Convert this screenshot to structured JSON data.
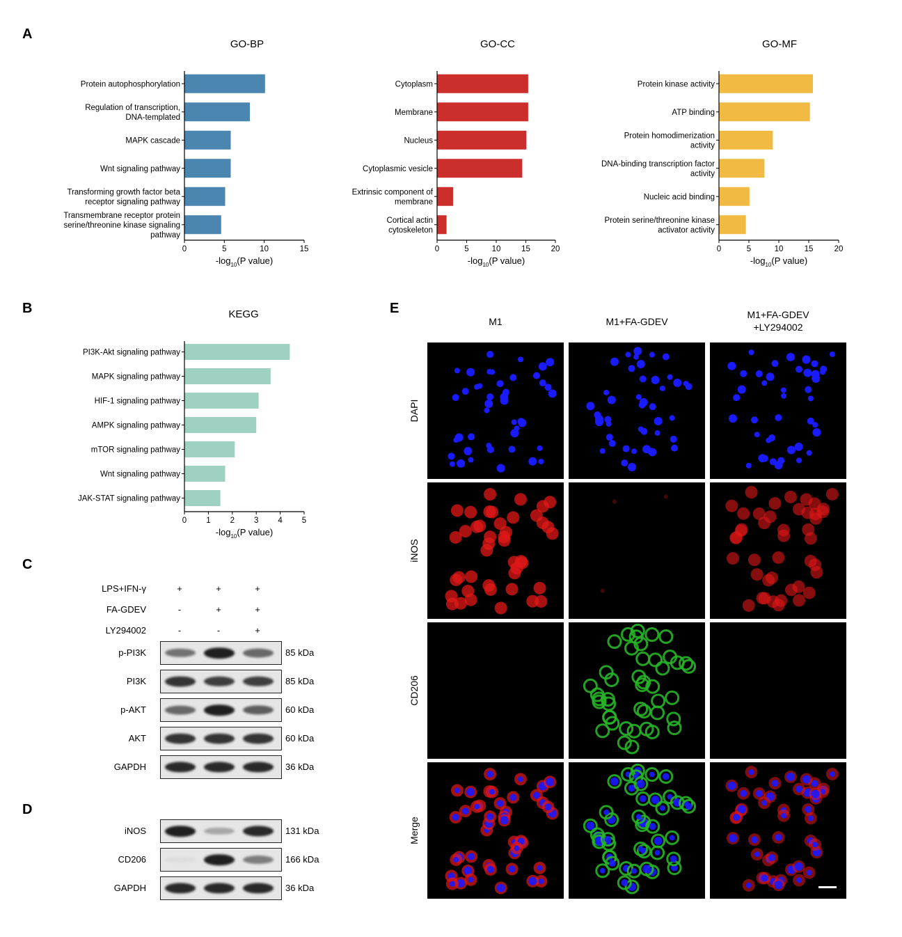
{
  "panels": {
    "A": "A",
    "B": "B",
    "C": "C",
    "D": "D",
    "E": "E"
  },
  "chart_data": [
    {
      "type": "bar",
      "orientation": "horizontal",
      "title": "GO-BP",
      "categories": [
        "Protein autophosphorylation",
        "Regulation of transcription, DNA-templated",
        "MAPK cascade",
        "Wnt signaling pathway",
        "Transforming growth factor beta receptor signaling pathway",
        "Transmembrane receptor protein serine/threonine kinase signaling pathway"
      ],
      "values": [
        10.1,
        8.2,
        5.8,
        5.8,
        5.1,
        4.6
      ],
      "xlim": [
        0,
        15
      ],
      "xticks": [
        "0",
        "5",
        "10",
        "15"
      ],
      "xlabel": "-log10(P value)",
      "color": "#4a86b0"
    },
    {
      "type": "bar",
      "orientation": "horizontal",
      "title": "GO-CC",
      "categories": [
        "Cytoplasm",
        "Membrane",
        "Nucleus",
        "Cytoplasmic vesicle",
        "Extrinsic component of membrane",
        "Cortical actin cytoskeleton"
      ],
      "values": [
        15.4,
        15.4,
        15.1,
        14.4,
        2.7,
        1.6
      ],
      "xlim": [
        0,
        20
      ],
      "xticks": [
        "0",
        "5",
        "10",
        "15",
        "20"
      ],
      "xlabel": "-log10(P value)",
      "color": "#cc2e2b"
    },
    {
      "type": "bar",
      "orientation": "horizontal",
      "title": "GO-MF",
      "categories": [
        "Protein kinase activity",
        "ATP binding",
        "Protein homodimerization activity",
        "DNA-binding transcription factor activity",
        "Nucleic acid binding",
        "Protein serine/threonine kinase activator activity"
      ],
      "values": [
        15.7,
        15.2,
        9.0,
        7.6,
        5.1,
        4.5
      ],
      "xlim": [
        0,
        20
      ],
      "xticks": [
        "0",
        "5",
        "10",
        "15",
        "20"
      ],
      "xlabel": "-log10(P value)",
      "color": "#f1bb43"
    },
    {
      "type": "bar",
      "orientation": "horizontal",
      "title": "KEGG",
      "categories": [
        "PI3K-Akt signaling pathway",
        "MAPK signaling pathway",
        "HIF-1 signaling pathway",
        "AMPK signaling pathway",
        "mTOR signaling pathway",
        "Wnt signaling pathway",
        "JAK-STAT signaling pathway"
      ],
      "values": [
        4.4,
        3.6,
        3.1,
        3.0,
        2.1,
        1.7,
        1.5
      ],
      "xlim": [
        0,
        5
      ],
      "xticks": [
        "0",
        "1",
        "2",
        "3",
        "4",
        "5"
      ],
      "xlabel": "-log10(P value)",
      "color": "#9fd1c3"
    }
  ],
  "western": {
    "treatments": [
      {
        "label": "LPS+IFN-γ",
        "signs": [
          "+",
          "+",
          "+"
        ]
      },
      {
        "label": "FA-GDEV",
        "signs": [
          "-",
          "+",
          "+"
        ]
      },
      {
        "label": "LY294002",
        "signs": [
          "-",
          "-",
          "+"
        ]
      }
    ],
    "blots_c": [
      {
        "label": "p-PI3K",
        "kda": "85 kDa",
        "intensity": [
          0.55,
          0.95,
          0.6
        ]
      },
      {
        "label": "PI3K",
        "kda": "85 kDa",
        "intensity": [
          0.85,
          0.8,
          0.8
        ]
      },
      {
        "label": "p-AKT",
        "kda": "60 kDa",
        "intensity": [
          0.6,
          0.95,
          0.65
        ]
      },
      {
        "label": "AKT",
        "kda": "60 kDa",
        "intensity": [
          0.85,
          0.85,
          0.85
        ]
      },
      {
        "label": "GAPDH",
        "kda": "36 kDa",
        "intensity": [
          0.9,
          0.9,
          0.9
        ]
      }
    ],
    "blots_d": [
      {
        "label": "iNOS",
        "kda": "131 kDa",
        "intensity": [
          0.95,
          0.3,
          0.9
        ]
      },
      {
        "label": "CD206",
        "kda": "166 kDa",
        "intensity": [
          0.05,
          0.95,
          0.5
        ]
      },
      {
        "label": "GAPDH",
        "kda": "36 kDa",
        "intensity": [
          0.9,
          0.9,
          0.9
        ]
      }
    ]
  },
  "microscopy": {
    "columns": [
      "M1",
      "M1+FA-GDEV",
      "M1+FA-GDEV\n+LY294002"
    ],
    "rows": [
      "DAPI",
      "iNOS",
      "CD206",
      "Merge"
    ],
    "colors": {
      "DAPI": "#1a1aff",
      "iNOS": "#e01818",
      "CD206": "#27b427"
    },
    "signal": {
      "iNOS": [
        0.95,
        0.05,
        0.75
      ],
      "CD206": [
        0.0,
        0.9,
        0.0
      ]
    }
  }
}
